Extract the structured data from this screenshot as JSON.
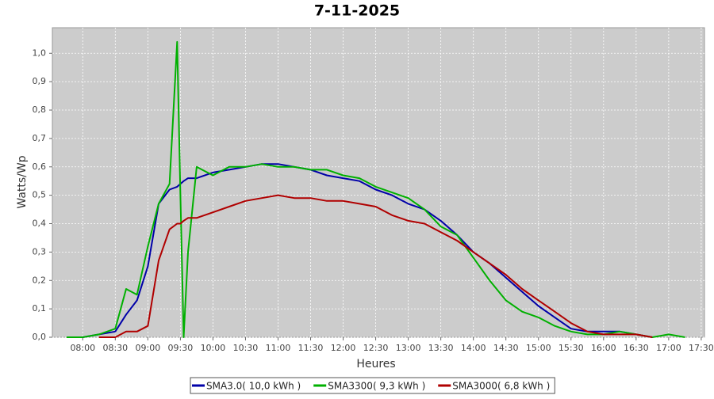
{
  "chart_data": {
    "type": "line",
    "title": "7-11-2025",
    "x_label": "Heures",
    "y_label": "Watts/Wp",
    "x": [
      "07:45",
      "08:00",
      "08:15",
      "08:30",
      "08:40",
      "08:50",
      "09:00",
      "09:10",
      "09:20",
      "09:27",
      "09:30",
      "09:33",
      "09:37",
      "09:45",
      "10:00",
      "10:15",
      "10:30",
      "10:45",
      "11:00",
      "11:15",
      "11:30",
      "11:45",
      "12:00",
      "12:15",
      "12:30",
      "12:45",
      "13:00",
      "13:15",
      "13:30",
      "13:45",
      "14:00",
      "14:15",
      "14:30",
      "14:45",
      "15:00",
      "15:15",
      "15:30",
      "15:45",
      "16:00",
      "16:15",
      "16:30",
      "16:45",
      "17:00",
      "17:15"
    ],
    "xlim": [
      "07:32",
      "17:33"
    ],
    "xticks": [
      "08:00",
      "08:30",
      "09:00",
      "09:30",
      "10:00",
      "10:30",
      "11:00",
      "11:30",
      "12:00",
      "12:30",
      "13:00",
      "13:30",
      "14:00",
      "14:30",
      "15:00",
      "15:30",
      "16:00",
      "16:30",
      "17:00",
      "17:30"
    ],
    "ylim": [
      0,
      1.09
    ],
    "yticks": [
      {
        "value": 0,
        "label": "0,0"
      },
      {
        "value": 0.1,
        "label": "0,1"
      },
      {
        "value": 0.2,
        "label": "0,2"
      },
      {
        "value": 0.3,
        "label": "0,3"
      },
      {
        "value": 0.4,
        "label": "0,4"
      },
      {
        "value": 0.5,
        "label": "0,5"
      },
      {
        "value": 0.6,
        "label": "0,6"
      },
      {
        "value": 0.7,
        "label": "0,7"
      },
      {
        "value": 0.8,
        "label": "0,8"
      },
      {
        "value": 0.9,
        "label": "0,9"
      },
      {
        "value": 1.0,
        "label": "1,0"
      }
    ],
    "grid": true,
    "legend": "bottom",
    "series": [
      {
        "name": "SMA3.0( 10,0 kWh )",
        "color": "#0000a8",
        "values": [
          null,
          0.0,
          0.01,
          0.02,
          0.08,
          0.13,
          0.25,
          0.47,
          0.52,
          0.53,
          0.54,
          0.55,
          0.56,
          0.56,
          0.58,
          0.59,
          0.6,
          0.61,
          0.61,
          0.6,
          0.59,
          0.57,
          0.56,
          0.55,
          0.52,
          0.5,
          0.47,
          0.45,
          0.41,
          0.36,
          0.3,
          0.26,
          0.21,
          0.16,
          0.11,
          0.07,
          0.03,
          0.02,
          0.02,
          0.02,
          0.01,
          0.0,
          null,
          null
        ]
      },
      {
        "name": "SMA3300( 9,3 kWh )",
        "color": "#00b000",
        "values": [
          0.0,
          0.0,
          0.01,
          0.03,
          0.17,
          0.15,
          0.32,
          0.47,
          0.54,
          1.04,
          0.5,
          0.0,
          0.3,
          0.6,
          0.57,
          0.6,
          0.6,
          0.61,
          0.6,
          0.6,
          0.59,
          0.59,
          0.57,
          0.56,
          0.53,
          0.51,
          0.49,
          0.45,
          0.39,
          0.36,
          0.28,
          0.2,
          0.13,
          0.09,
          0.07,
          0.04,
          0.02,
          0.01,
          0.01,
          0.02,
          0.01,
          0.0,
          0.01,
          0.0
        ]
      },
      {
        "name": "SMA3000( 6,8 kWh )",
        "color": "#b00000",
        "values": [
          null,
          null,
          0.0,
          0.0,
          0.02,
          0.02,
          0.04,
          0.27,
          0.38,
          0.4,
          0.4,
          0.41,
          0.42,
          0.42,
          0.44,
          0.46,
          0.48,
          0.49,
          0.5,
          0.49,
          0.49,
          0.48,
          0.48,
          0.47,
          0.46,
          0.43,
          0.41,
          0.4,
          0.37,
          0.34,
          0.3,
          0.26,
          0.22,
          0.17,
          0.13,
          0.09,
          0.05,
          0.02,
          0.01,
          0.01,
          0.01,
          0.0,
          null,
          null
        ]
      }
    ]
  }
}
